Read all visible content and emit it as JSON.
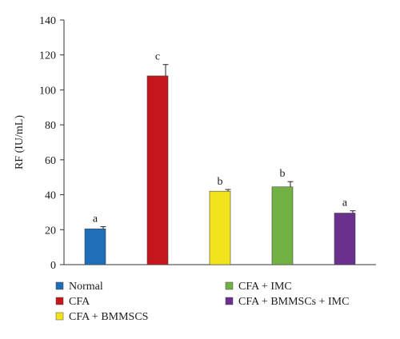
{
  "chart_data": {
    "type": "bar",
    "title": "",
    "xlabel": "",
    "ylabel": "RF (IU/mL)",
    "ylim": [
      0,
      140
    ],
    "yticks": [
      0,
      20,
      40,
      60,
      80,
      100,
      120,
      140
    ],
    "grid": false,
    "legend_position": "bottom",
    "categories": [
      "Normal",
      "CFA",
      "CFA + BMMSCS",
      "CFA + IMC",
      "CFA + BMMSCs + IMC"
    ],
    "values": [
      20.5,
      108,
      42,
      44.5,
      29.5
    ],
    "errors": [
      1.2,
      6.5,
      1.0,
      3.0,
      1.3
    ],
    "significance": [
      "a",
      "c",
      "b",
      "b",
      "a"
    ],
    "colors": [
      "#1f6fb8",
      "#c4161c",
      "#f2e41c",
      "#72b245",
      "#6b2f8e"
    ]
  }
}
